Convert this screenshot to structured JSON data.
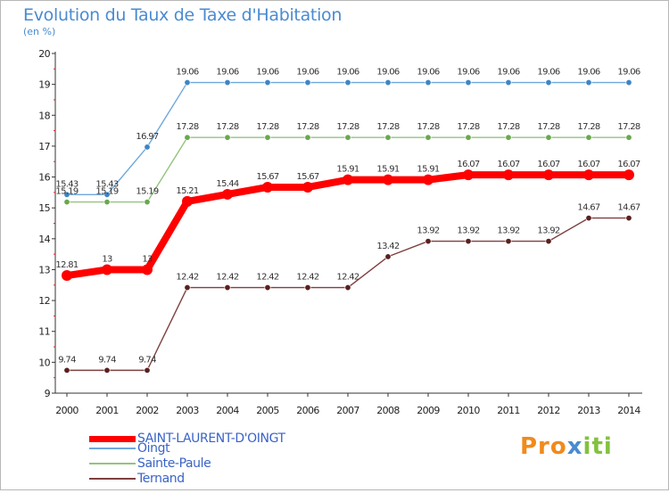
{
  "chart_data": {
    "type": "line",
    "title": "Evolution du Taux de Taxe d'Habitation",
    "subtitle": "(en %)",
    "x": [
      "2000",
      "2001",
      "2002",
      "2003",
      "2004",
      "2005",
      "2006",
      "2007",
      "2008",
      "2009",
      "2010",
      "2011",
      "2012",
      "2013",
      "2014"
    ],
    "ylim": [
      9,
      20
    ],
    "yticks": [
      "9",
      "10",
      "11",
      "12",
      "13",
      "14",
      "15",
      "16",
      "17",
      "18",
      "19",
      "20"
    ],
    "grid": false,
    "legend_position": "bottom-left",
    "series": [
      {
        "name": "SAINT-LAURENT-D'OINGT",
        "color": "#ff0000",
        "marker_color": "#ff0000",
        "emphasis": true,
        "values": [
          12.81,
          13,
          13,
          15.21,
          15.44,
          15.67,
          15.67,
          15.91,
          15.91,
          15.91,
          16.07,
          16.07,
          16.07,
          16.07,
          16.07
        ],
        "labels": [
          "12.81",
          "13",
          "13",
          "15.21",
          "15.44",
          "15.67",
          "15.67",
          "15.91",
          "15.91",
          "15.91",
          "16.07",
          "16.07",
          "16.07",
          "16.07",
          "16.07"
        ]
      },
      {
        "name": "Oingt",
        "color": "#6fa8dc",
        "marker_color": "#3d85c6",
        "values": [
          15.43,
          15.43,
          16.97,
          19.06,
          19.06,
          19.06,
          19.06,
          19.06,
          19.06,
          19.06,
          19.06,
          19.06,
          19.06,
          19.06,
          19.06
        ],
        "labels": [
          "15.43",
          "15.43",
          "16.97",
          "19.06",
          "19.06",
          "19.06",
          "19.06",
          "19.06",
          "19.06",
          "19.06",
          "19.06",
          "19.06",
          "19.06",
          "19.06",
          "19.06"
        ]
      },
      {
        "name": "Sainte-Paule",
        "color": "#93c47d",
        "marker_color": "#6aa84f",
        "values": [
          15.19,
          15.19,
          15.19,
          17.28,
          17.28,
          17.28,
          17.28,
          17.28,
          17.28,
          17.28,
          17.28,
          17.28,
          17.28,
          17.28,
          17.28
        ],
        "labels": [
          "15.19",
          "15.19",
          "15.19",
          "17.28",
          "17.28",
          "17.28",
          "17.28",
          "17.28",
          "17.28",
          "17.28",
          "17.28",
          "17.28",
          "17.28",
          "17.28",
          "17.28"
        ]
      },
      {
        "name": "Ternand",
        "color": "#7f3f3f",
        "marker_color": "#5b1f1f",
        "values": [
          9.74,
          9.74,
          9.74,
          12.42,
          12.42,
          12.42,
          12.42,
          12.42,
          13.42,
          13.92,
          13.92,
          13.92,
          13.92,
          14.67,
          14.67
        ],
        "labels": [
          "9.74",
          "9.74",
          "9.74",
          "12.42",
          "12.42",
          "12.42",
          "12.42",
          "12.42",
          "13.42",
          "13.92",
          "13.92",
          "13.92",
          "13.92",
          "14.67",
          "14.67"
        ]
      }
    ]
  },
  "brand": {
    "p1": "Pro",
    "p2": "x",
    "p3": "iti"
  }
}
